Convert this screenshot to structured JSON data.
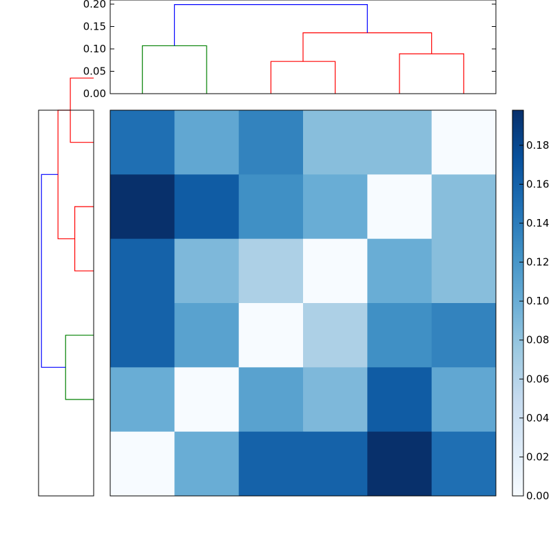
{
  "chart_data": {
    "type": "heatmap",
    "colormap": "Blues",
    "color_range": [
      0,
      0.198
    ],
    "matrix": [
      [
        0.15,
        0.105,
        0.135,
        0.085,
        0.085,
        0.0
      ],
      [
        0.198,
        0.165,
        0.125,
        0.1,
        0.0,
        0.085
      ],
      [
        0.16,
        0.09,
        0.065,
        0.0,
        0.1,
        0.085
      ],
      [
        0.16,
        0.11,
        0.0,
        0.065,
        0.125,
        0.135
      ],
      [
        0.1,
        0.0,
        0.11,
        0.09,
        0.165,
        0.105
      ],
      [
        0.0,
        0.1,
        0.16,
        0.16,
        0.198,
        0.15
      ]
    ],
    "top_dendrogram": {
      "ylim": [
        0,
        0.2
      ],
      "yticks": [
        "0.00",
        "0.05",
        "0.10",
        "0.15",
        "0.20"
      ],
      "links": [
        {
          "left": 0,
          "right": 1,
          "height": 0.107,
          "color": "#008000"
        },
        {
          "left": 2,
          "right": 3,
          "height": 0.072,
          "color": "#ff0000"
        },
        {
          "left": 4,
          "right": 5,
          "height": 0.089,
          "color": "#ff0000"
        },
        {
          "left": [
            2,
            3
          ],
          "right": [
            4,
            5
          ],
          "height": 0.136,
          "color": "#ff0000",
          "left_h": 0.072,
          "right_h": 0.089
        },
        {
          "left": [
            0,
            1
          ],
          "right": [
            2,
            3,
            4,
            5
          ],
          "height": 0.199,
          "color": "#0000ff",
          "left_h": 0.107,
          "right_h": 0.136
        }
      ]
    },
    "left_dendrogram": {
      "xlim": [
        0,
        0.21
      ],
      "leaf_order_top_to_bottom": [
        5,
        4,
        3,
        2,
        1,
        0
      ]
    },
    "colorbar": {
      "ticks": [
        "0.00",
        "0.02",
        "0.04",
        "0.06",
        "0.08",
        "0.10",
        "0.12",
        "0.14",
        "0.16",
        "0.18"
      ]
    }
  }
}
